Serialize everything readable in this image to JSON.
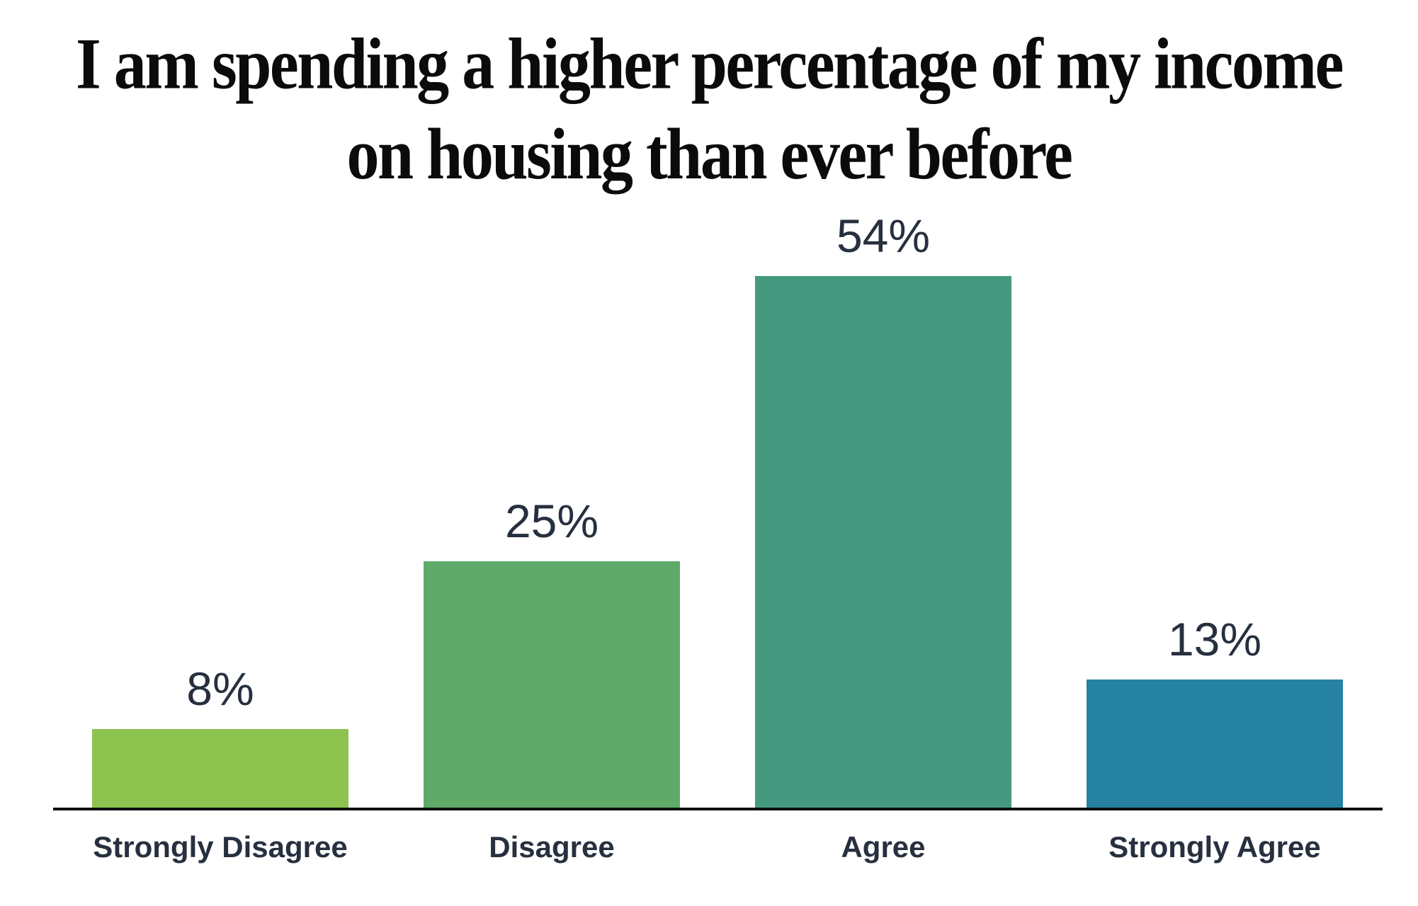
{
  "page": {
    "background_color": "#FFFFFF"
  },
  "chart_data": {
    "type": "bar",
    "title": "I am spending a higher percentage of my income on housing than ever before",
    "title_lines": [
      "I am spending a higher percentage of my income",
      "on housing than ever before"
    ],
    "categories": [
      "Strongly Disagree",
      "Disagree",
      "Agree",
      "Strongly Agree"
    ],
    "values": [
      8,
      25,
      54,
      13
    ],
    "value_labels": [
      "8%",
      "25%",
      "54%",
      "13%"
    ],
    "bar_colors": [
      "#8CC44F",
      "#5FA969",
      "#44997F",
      "#2682A3"
    ],
    "title_color": "#0B0B0B",
    "label_color": "#27303F",
    "axis_color": "#0E0F12",
    "unit": "%",
    "ylim": [
      0,
      60
    ],
    "grid": false,
    "y_axis_visible": false,
    "legend": false,
    "value_label_position": "above_bars"
  }
}
